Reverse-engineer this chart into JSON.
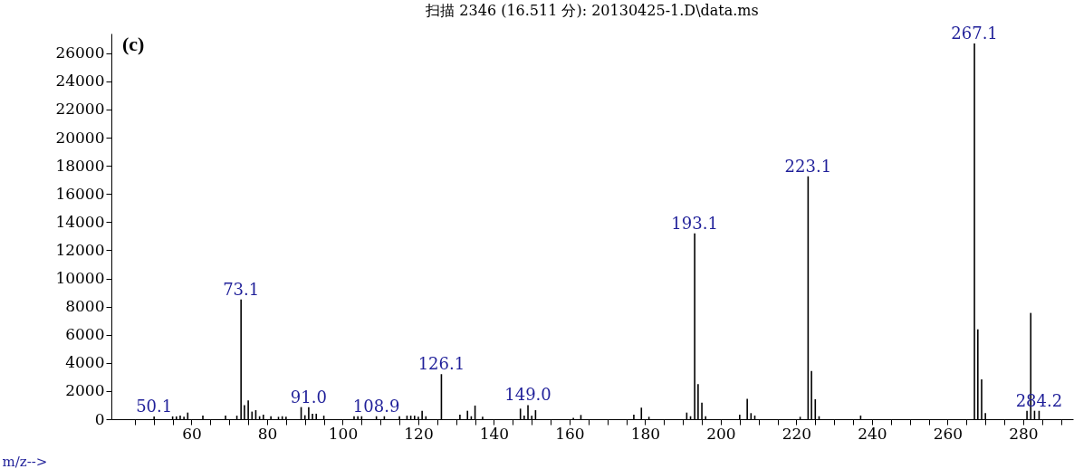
{
  "chart_data": {
    "type": "bar",
    "title": "扫描 2346 (16.511 分): 20130425-1.D\\data.ms",
    "xlabel": "m/z-->",
    "x": [
      50.1,
      55,
      56,
      57,
      58,
      59,
      63,
      69,
      72,
      73.1,
      74,
      75,
      76,
      77,
      78,
      79,
      81,
      83,
      84,
      85,
      89,
      90,
      91,
      92,
      93,
      95,
      103,
      104,
      105,
      108.9,
      111,
      115,
      117,
      118,
      119,
      120,
      121,
      122,
      126.1,
      131,
      133,
      134,
      135,
      137,
      147,
      148,
      149,
      150,
      151,
      161,
      163,
      177,
      179,
      181,
      191,
      192,
      193.1,
      194,
      195,
      196,
      205,
      207,
      208,
      209,
      221,
      223.1,
      224,
      225,
      226,
      237,
      267.1,
      268,
      269,
      270,
      281,
      282,
      283,
      284.2
    ],
    "values": [
      200,
      200,
      200,
      250,
      170,
      470,
      250,
      250,
      250,
      8500,
      1000,
      1330,
      540,
      640,
      210,
      320,
      210,
      170,
      210,
      170,
      860,
      280,
      860,
      390,
      390,
      250,
      210,
      210,
      210,
      210,
      210,
      210,
      250,
      250,
      250,
      170,
      600,
      210,
      3200,
      320,
      600,
      210,
      970,
      170,
      750,
      250,
      1000,
      250,
      640,
      100,
      300,
      320,
      820,
      170,
      470,
      210,
      13200,
      2500,
      1180,
      210,
      320,
      1440,
      430,
      260,
      170,
      17250,
      3430,
      1420,
      210,
      260,
      26700,
      6390,
      2830,
      430,
      600,
      7550,
      600,
      600
    ],
    "color": "#000000",
    "xlim": [
      40,
      292
    ],
    "xticks": [
      {
        "value": 45,
        "label": null
      },
      {
        "value": 50,
        "label": null
      },
      {
        "value": 55,
        "label": null
      },
      60,
      {
        "value": 65,
        "label": null
      },
      {
        "value": 70,
        "label": null
      },
      {
        "value": 75,
        "label": null
      },
      80,
      {
        "value": 85,
        "label": null
      },
      {
        "value": 90,
        "label": null
      },
      {
        "value": 95,
        "label": null
      },
      100,
      {
        "value": 105,
        "label": null
      },
      {
        "value": 110,
        "label": null
      },
      {
        "value": 115,
        "label": null
      },
      120,
      {
        "value": 125,
        "label": null
      },
      {
        "value": 130,
        "label": null
      },
      {
        "value": 135,
        "label": null
      },
      140,
      {
        "value": 145,
        "label": null
      },
      {
        "value": 150,
        "label": null
      },
      {
        "value": 155,
        "label": null
      },
      160,
      {
        "value": 165,
        "label": null
      },
      {
        "value": 170,
        "label": null
      },
      {
        "value": 175,
        "label": null
      },
      180,
      {
        "value": 185,
        "label": null
      },
      {
        "value": 190,
        "label": null
      },
      {
        "value": 195,
        "label": null
      },
      200,
      {
        "value": 205,
        "label": null
      },
      {
        "value": 210,
        "label": null
      },
      {
        "value": 215,
        "label": null
      },
      220,
      {
        "value": 225,
        "label": null
      },
      {
        "value": 230,
        "label": null
      },
      {
        "value": 235,
        "label": null
      },
      240,
      {
        "value": 245,
        "label": null
      },
      {
        "value": 250,
        "label": null
      },
      {
        "value": 255,
        "label": null
      },
      260,
      {
        "value": 265,
        "label": null
      },
      {
        "value": 270,
        "label": null
      },
      {
        "value": 275,
        "label": null
      },
      280,
      {
        "value": 285,
        "label": null
      },
      {
        "value": 290,
        "label": null
      }
    ],
    "ylim": [
      0,
      27400
    ],
    "yticks": [
      0,
      2000,
      4000,
      6000,
      8000,
      10000,
      12000,
      14000,
      16000,
      18000,
      20000,
      22000,
      24000,
      26000
    ],
    "grid": false,
    "annotations": [
      "(c)",
      {
        "text": "50.1",
        "x": 50.1,
        "y": 200
      },
      {
        "text": "73.1",
        "x": 73.1,
        "y": 8500
      },
      {
        "text": "91.0",
        "x": 91,
        "y": 860
      },
      {
        "text": "108.9",
        "x": 108.9,
        "y": 210
      },
      {
        "text": "126.1",
        "x": 126.1,
        "y": 3200
      },
      {
        "text": "149.0",
        "x": 149,
        "y": 1000
      },
      {
        "text": "193.1",
        "x": 193.1,
        "y": 13200
      },
      {
        "text": "223.1",
        "x": 223.1,
        "y": 17250
      },
      {
        "text": "267.1",
        "x": 267.1,
        "y": 26700
      },
      {
        "text": "284.2",
        "x": 284.2,
        "y": 600
      }
    ]
  }
}
